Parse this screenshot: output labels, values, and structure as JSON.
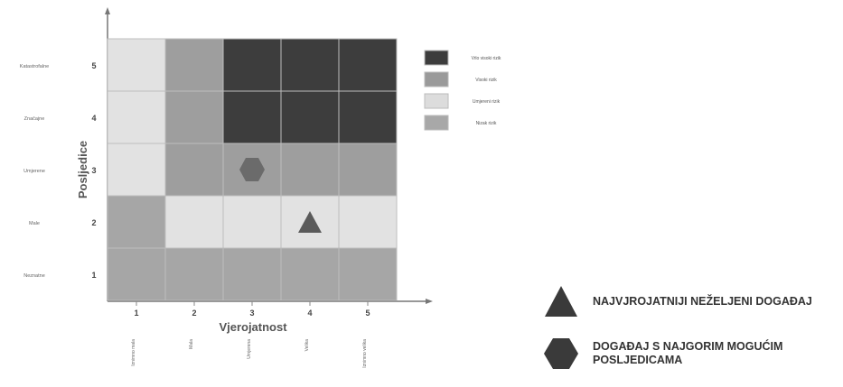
{
  "matrix": {
    "y_axis_title": "Posljedice",
    "x_axis_title": "Vjerojatnost",
    "y_ticks": [
      "1",
      "2",
      "3",
      "4",
      "5"
    ],
    "y_labels": [
      "Neznatne",
      "Male",
      "Umjerene",
      "Značajne",
      "Katastrofalne"
    ],
    "x_ticks": [
      "1",
      "2",
      "3",
      "4",
      "5"
    ],
    "x_labels": [
      "Iznimno mala",
      "Mala",
      "Umjerena",
      "Velika",
      "Iznimno velika"
    ],
    "legend": [
      {
        "label": "Vrlo visoki rizik",
        "color": "#3d3d3d"
      },
      {
        "label": "Visoki rizik",
        "color": "#9a9a9a"
      },
      {
        "label": "Umjereni rizik",
        "color": "#dcdcdc"
      },
      {
        "label": "Nizak rizik",
        "color": "#a8a8a8"
      }
    ],
    "grid": [
      [
        "#e2e2e2",
        "#9e9e9e",
        "#3d3d3d",
        "#3d3d3d",
        "#3d3d3d"
      ],
      [
        "#e2e2e2",
        "#9e9e9e",
        "#3d3d3d",
        "#3d3d3d",
        "#3d3d3d"
      ],
      [
        "#e2e2e2",
        "#9e9e9e",
        "#9e9e9e",
        "#9e9e9e",
        "#9e9e9e"
      ],
      [
        "#a6a6a6",
        "#e2e2e2",
        "#e2e2e2",
        "#e2e2e2",
        "#e2e2e2"
      ],
      [
        "#a6a6a6",
        "#a6a6a6",
        "#a6a6a6",
        "#a6a6a6",
        "#a6a6a6"
      ]
    ],
    "markers": [
      {
        "shape": "hexagon",
        "x": 3,
        "y": 3,
        "color": "#6b6b6b"
      },
      {
        "shape": "triangle",
        "x": 4,
        "y": 2,
        "color": "#5a5a5a"
      }
    ]
  },
  "bottom_legend": {
    "triangle_text": "NAJVJROJATNIJI NEŽELJENI DOGAĐAJ",
    "hexagon_text": "DOGAĐAJ S NAJGORIM MOGUĆIM POSLJEDICAMA",
    "triangle_color": "#3a3a3a",
    "hexagon_color": "#3a3a3a"
  }
}
